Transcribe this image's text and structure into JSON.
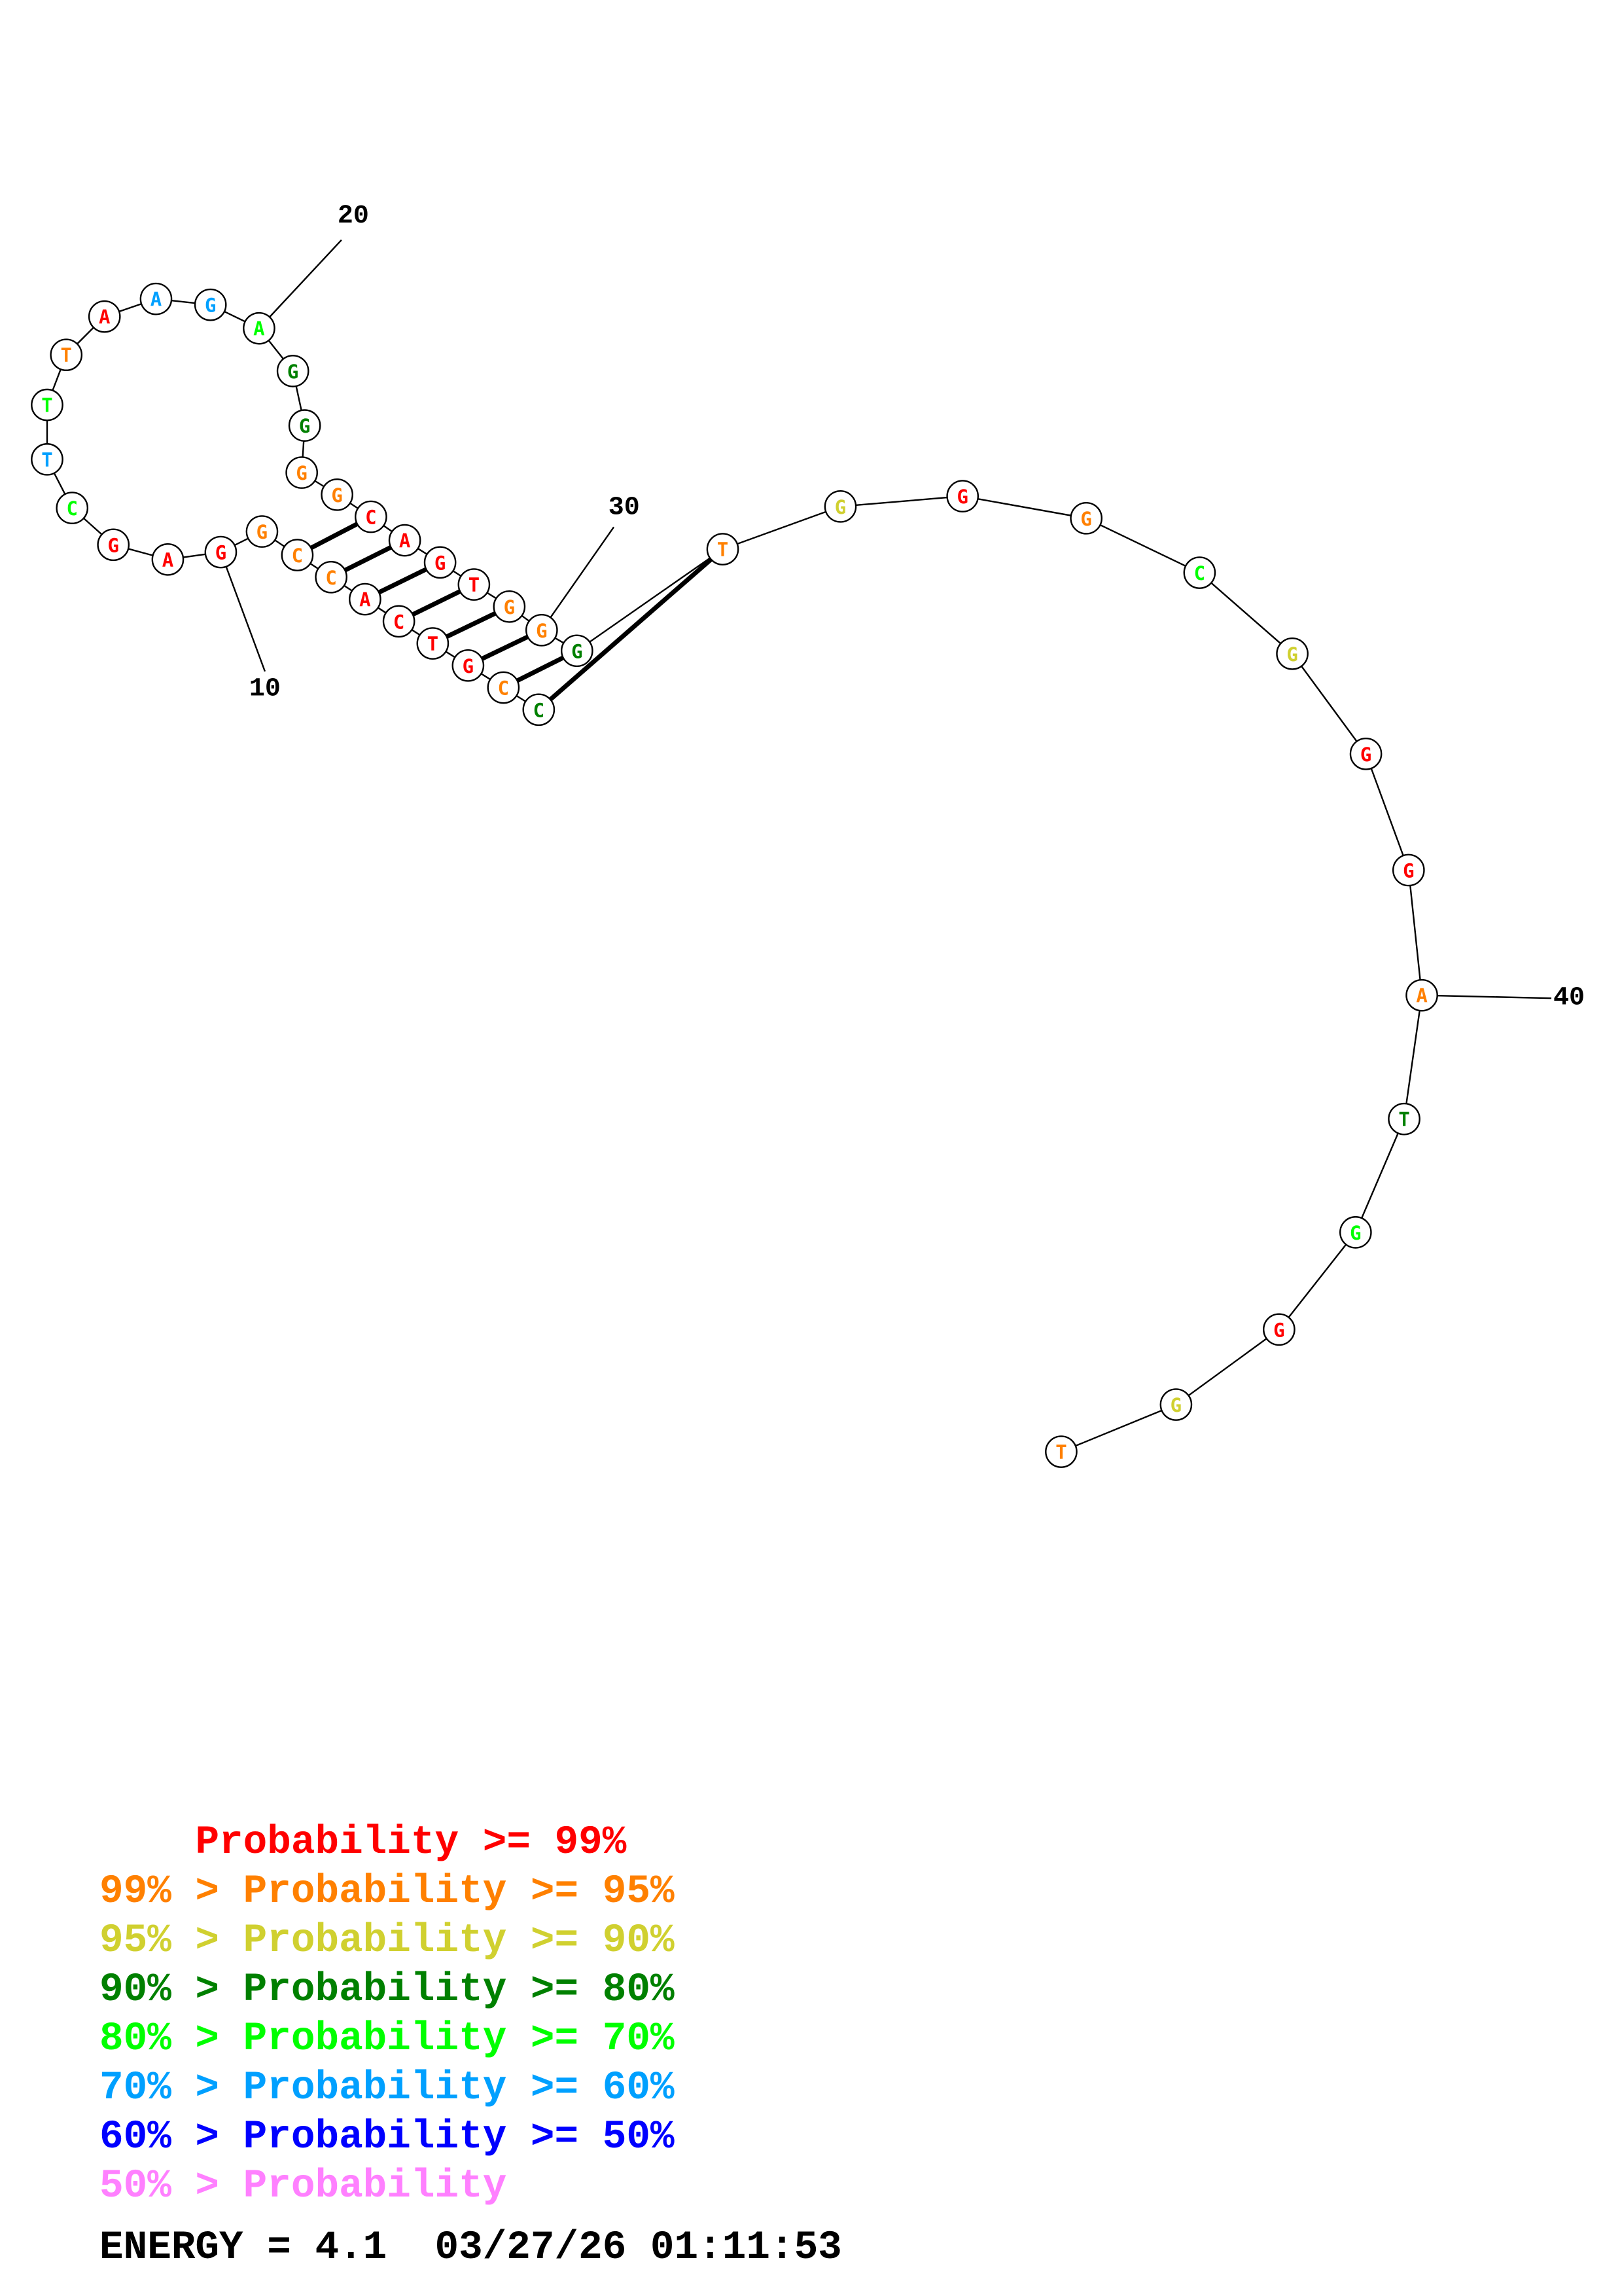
{
  "sequence": [
    "C",
    "C",
    "G",
    "T",
    "C",
    "A",
    "C",
    "C",
    "G",
    "G",
    "A",
    "G",
    "C",
    "T",
    "T",
    "T",
    "A",
    "A",
    "G",
    "A",
    "G",
    "G",
    "G",
    "G",
    "C",
    "A",
    "G",
    "T",
    "G",
    "G",
    "G",
    "T",
    "G",
    "G",
    "G",
    "C",
    "G",
    "G",
    "G",
    "A",
    "T",
    "G",
    "G",
    "G",
    "T"
  ],
  "probability_class": [
    3,
    1,
    0,
    0,
    0,
    0,
    1,
    1,
    1,
    0,
    0,
    0,
    4,
    5,
    4,
    1,
    0,
    5,
    5,
    4,
    3,
    3,
    1,
    1,
    0,
    0,
    0,
    0,
    1,
    1,
    3,
    1,
    2,
    0,
    1,
    4,
    2,
    0,
    0,
    1,
    3,
    4,
    0,
    2,
    1
  ],
  "pairs": [
    [
      1,
      32
    ],
    [
      2,
      31
    ],
    [
      3,
      30
    ],
    [
      4,
      29
    ],
    [
      5,
      28
    ],
    [
      6,
      27
    ],
    [
      7,
      26
    ],
    [
      8,
      25
    ]
  ],
  "index_labels": [
    {
      "position": 10,
      "text": "10"
    },
    {
      "position": 20,
      "text": "20"
    },
    {
      "position": 30,
      "text": "30"
    },
    {
      "position": 40,
      "text": "40"
    }
  ],
  "colors": {
    "classes": [
      "#ff0000",
      "#ff8000",
      "#d0d030",
      "#008000",
      "#00ff00",
      "#00a0ff",
      "#0000ff",
      "#ff80ff"
    ],
    "outline": "#000000",
    "backbone": "#000000"
  },
  "legend": [
    {
      "prefix": "    ",
      "text": "Probability >= 99%"
    },
    {
      "prefix": "99% > ",
      "text": "Probability >= 95%"
    },
    {
      "prefix": "95% > ",
      "text": "Probability >= 90%"
    },
    {
      "prefix": "90% > ",
      "text": "Probability >= 80%"
    },
    {
      "prefix": "80% > ",
      "text": "Probability >= 70%"
    },
    {
      "prefix": "70% > ",
      "text": "Probability >= 60%"
    },
    {
      "prefix": "60% > ",
      "text": "Probability >= 50%"
    },
    {
      "prefix": "50% > ",
      "text": "Probability"
    }
  ],
  "energy": "ENERGY = 4.1  03/27/26 01:11:53"
}
